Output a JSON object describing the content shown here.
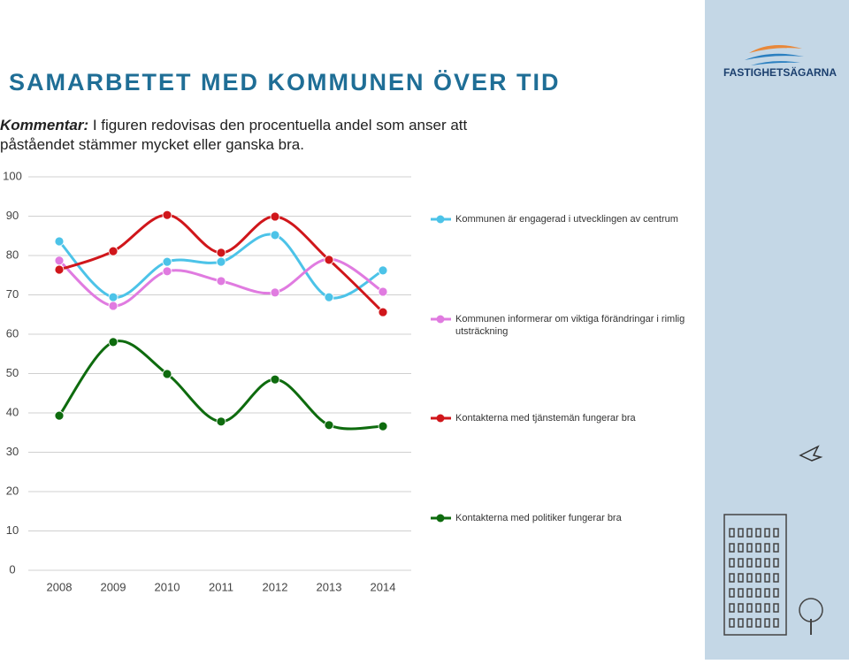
{
  "header": {
    "title": "SAMARBETET MED KOMMUNEN ÖVER TID",
    "logo": "FASTIGHETSÄGARNA"
  },
  "comment": {
    "label": "Kommentar:",
    "text": "I figuren redovisas den procentuella andel som anser att påståendet stämmer mycket eller ganska bra."
  },
  "chart_data": {
    "type": "line",
    "categories": [
      "2008",
      "2009",
      "2010",
      "2011",
      "2012",
      "2013",
      "2014"
    ],
    "ylim": [
      0,
      100
    ],
    "yticks": [
      0,
      10,
      20,
      30,
      40,
      50,
      60,
      70,
      80,
      90,
      100
    ],
    "grid": true,
    "legend": "right",
    "series": [
      {
        "name": "Kommunen är engagerad i utvecklingen av centrum",
        "color": "#4cc3e8",
        "values": [
          83.6,
          69.4,
          78.4,
          78.4,
          85.2,
          69.4,
          76.2
        ]
      },
      {
        "name": "Kommunen informerar om viktiga förändringar i rimlig utsträckning",
        "color": "#e07be0",
        "values": [
          78.7,
          67.2,
          76,
          73.5,
          70.6,
          79.1,
          70.8
        ]
      },
      {
        "name": "Kontakterna med tjänstemän fungerar bra",
        "color": "#d0161b",
        "values": [
          76.4,
          81.1,
          90.3,
          80.7,
          89.9,
          78.9,
          65.6
        ]
      },
      {
        "name": "Kontakterna med politiker fungerar bra",
        "color": "#0e6b0e",
        "values": [
          39.3,
          58,
          49.9,
          37.8,
          48.5,
          36.9,
          36.6
        ]
      }
    ]
  }
}
